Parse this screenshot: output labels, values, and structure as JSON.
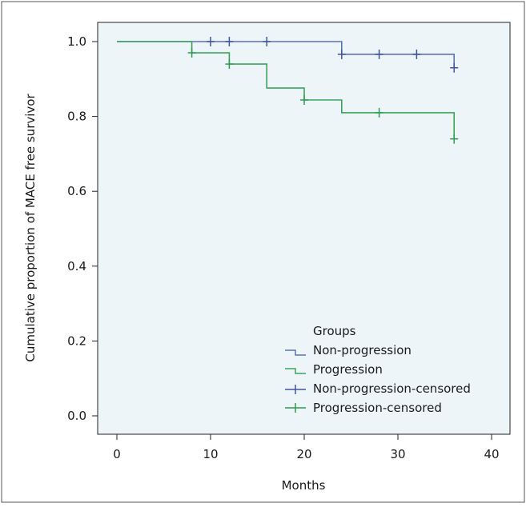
{
  "chart_data": {
    "type": "line",
    "subtype": "kaplan-meier step",
    "title": "",
    "xlabel": "Months",
    "ylabel": "Cumulative proportion of MACE free survivor",
    "xlim": [
      0,
      40
    ],
    "ylim": [
      0,
      1.0
    ],
    "xticks": [
      "0",
      "10",
      "20",
      "30",
      "40"
    ],
    "yticks": [
      "0.0",
      "0.2",
      "0.4",
      "0.6",
      "0.8",
      "1.0"
    ],
    "grid": false,
    "plot_background": "#eef5f8",
    "legend": {
      "title": "Groups",
      "placement": "bottom-right",
      "entries": [
        "Non-progression",
        "Progression",
        "Non-progression-censored",
        "Progression-censored"
      ]
    },
    "series": [
      {
        "name": "Non-progression",
        "color": "#5b73b8",
        "steps": [
          [
            0,
            1.0
          ],
          [
            24,
            0.966
          ],
          [
            36,
            0.93
          ]
        ],
        "x_end": 36
      },
      {
        "name": "Progression",
        "color": "#3aa35a",
        "steps": [
          [
            0,
            1.0
          ],
          [
            8,
            0.97
          ],
          [
            12,
            0.94
          ],
          [
            16,
            0.876
          ],
          [
            20,
            0.844
          ],
          [
            24,
            0.81
          ],
          [
            36,
            0.74
          ]
        ],
        "x_end": 36
      }
    ],
    "censored": [
      {
        "name": "Non-progression-censored",
        "color": "#3d55a0",
        "points": [
          [
            10,
            1.0
          ],
          [
            12,
            1.0
          ],
          [
            16,
            1.0
          ],
          [
            24,
            0.966
          ],
          [
            28,
            0.966
          ],
          [
            32,
            0.966
          ],
          [
            36,
            0.93
          ]
        ]
      },
      {
        "name": "Progression-censored",
        "color": "#2f9a50",
        "points": [
          [
            8,
            0.97
          ],
          [
            12,
            0.94
          ],
          [
            20,
            0.844
          ],
          [
            28,
            0.81
          ],
          [
            36,
            0.74
          ]
        ]
      }
    ]
  }
}
